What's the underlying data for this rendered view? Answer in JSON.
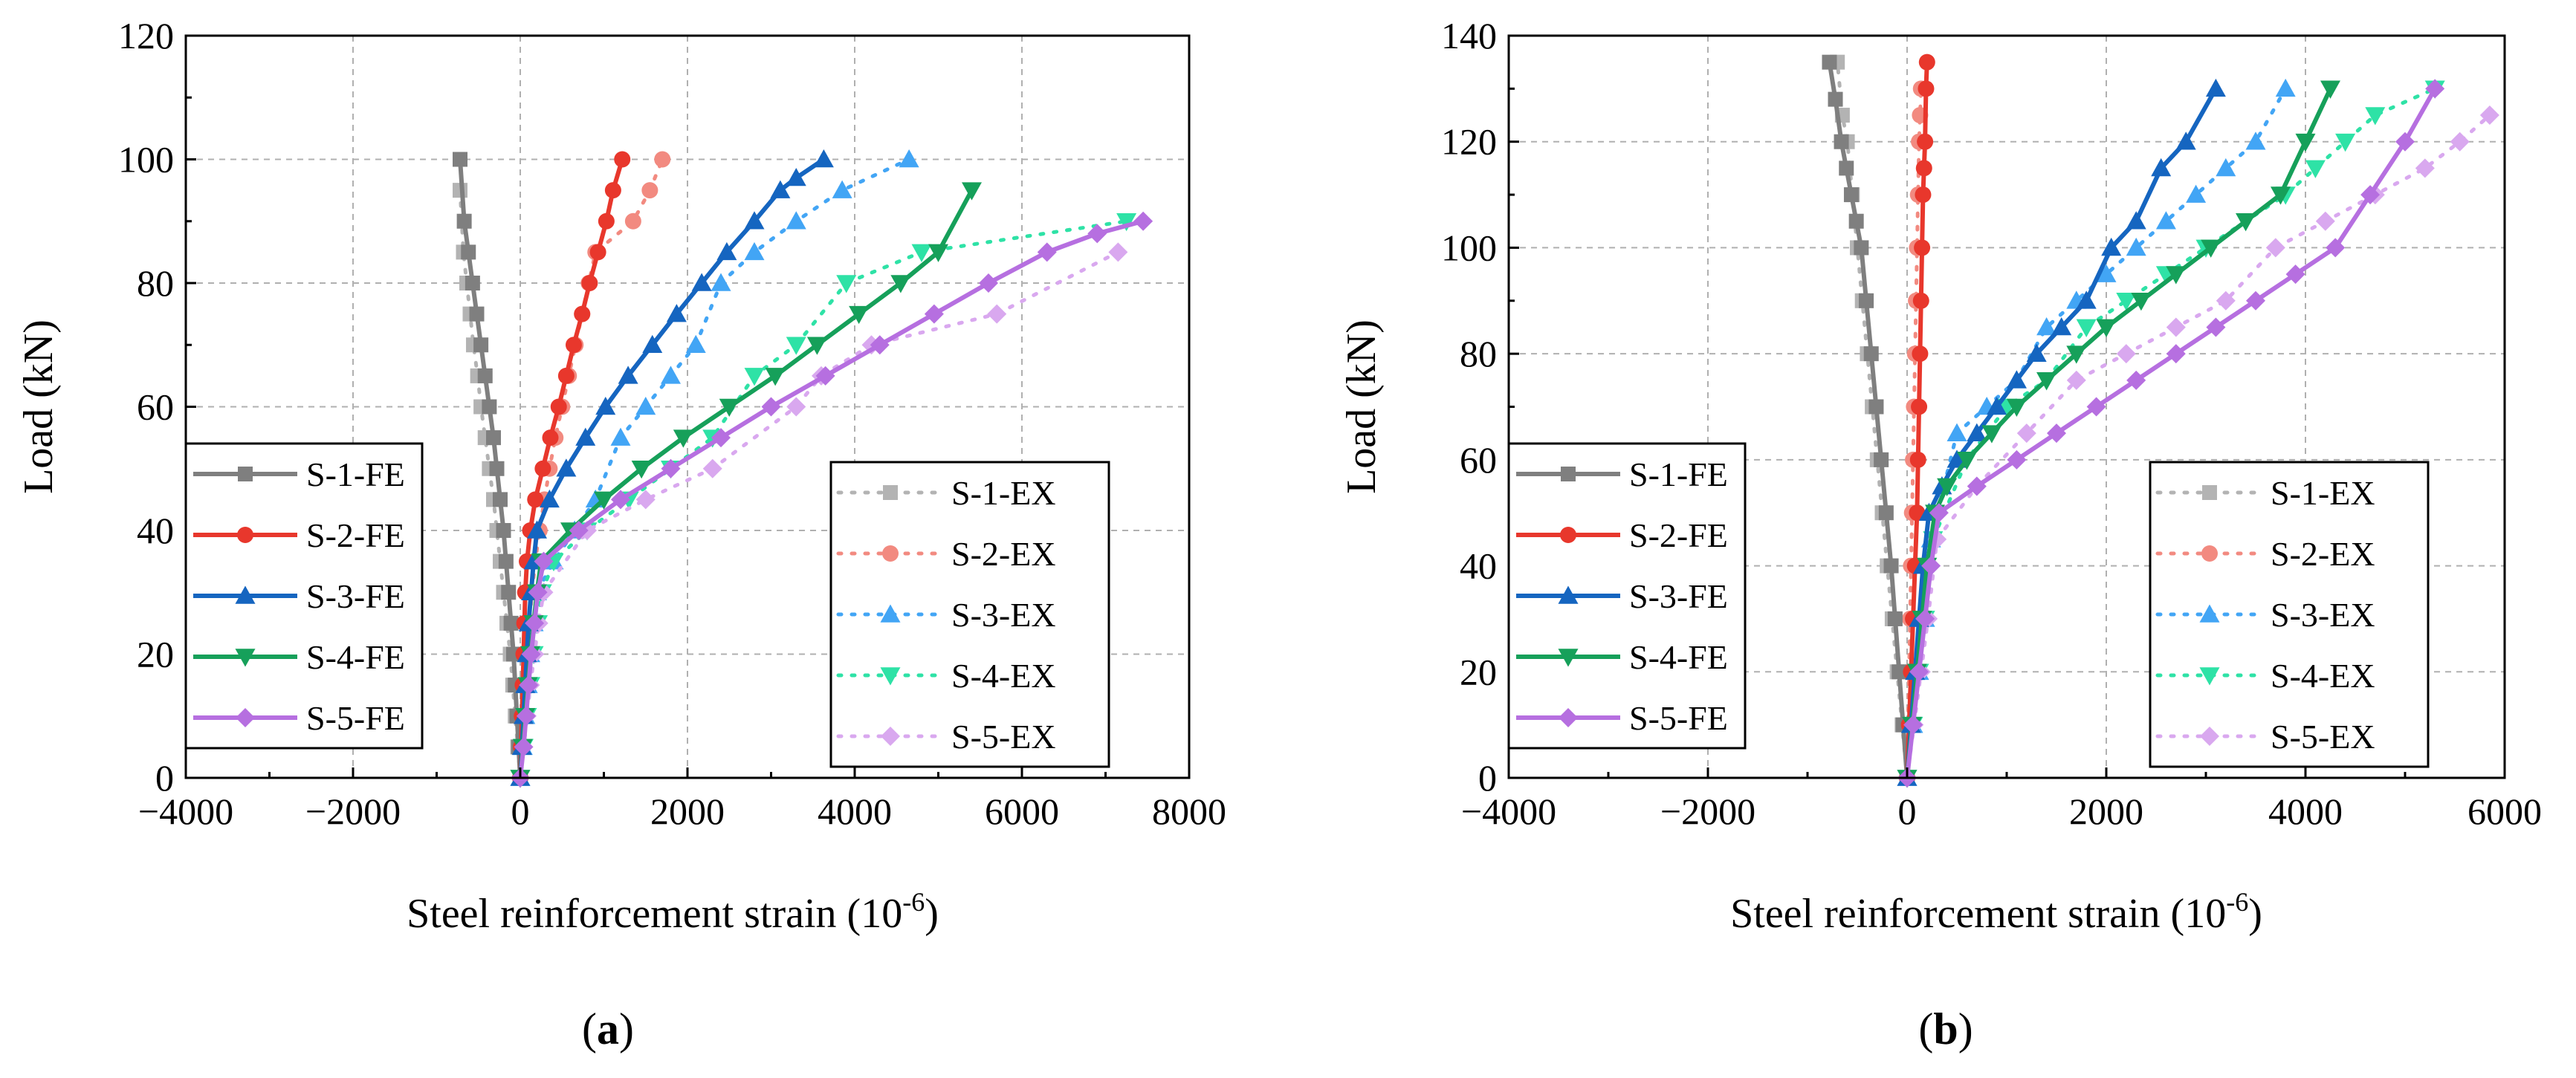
{
  "chart_data": [
    {
      "type": "line",
      "panel_label": "(a)",
      "xlabel": "Steel reinforcement strain (10",
      "xlabel_sup": "-6",
      "xlabel_suffix": ")",
      "ylabel": "Load (kN)",
      "xlim": [
        -4000,
        8000
      ],
      "ylim": [
        0,
        120
      ],
      "xticks": [
        -4000,
        -2000,
        0,
        2000,
        4000,
        6000,
        8000
      ],
      "yticks": [
        0,
        20,
        40,
        60,
        80,
        100,
        120
      ],
      "xtick_labels": [
        "−4000",
        "−2000",
        "0",
        "2000",
        "4000",
        "6000",
        "8000"
      ],
      "ytick_labels": [
        "0",
        "20",
        "40",
        "60",
        "80",
        "100",
        "120"
      ],
      "grid": true,
      "legend_fe_position": "lower-left",
      "legend_ex_position": "lower-right",
      "series": [
        {
          "name": "S-1-FE",
          "group": "FE",
          "color": "#7f7f7f",
          "marker": "square",
          "dash": false,
          "x": [
            0,
            -20,
            -40,
            -60,
            -80,
            -110,
            -140,
            -170,
            -200,
            -240,
            -280,
            -320,
            -370,
            -420,
            -470,
            -520,
            -570,
            -620,
            -670,
            -720
          ],
          "y": [
            0,
            5,
            10,
            15,
            20,
            25,
            30,
            35,
            40,
            45,
            50,
            55,
            60,
            65,
            70,
            75,
            80,
            85,
            90,
            100
          ]
        },
        {
          "name": "S-2-FE",
          "group": "FE",
          "color": "#e8372c",
          "marker": "circle",
          "dash": false,
          "x": [
            0,
            10,
            20,
            30,
            40,
            50,
            60,
            80,
            120,
            180,
            270,
            360,
            460,
            550,
            640,
            740,
            830,
            930,
            1030,
            1110,
            1220
          ],
          "y": [
            0,
            5,
            10,
            15,
            20,
            25,
            30,
            35,
            40,
            45,
            50,
            55,
            60,
            65,
            70,
            75,
            80,
            85,
            90,
            95,
            100
          ]
        },
        {
          "name": "S-3-FE",
          "group": "FE",
          "color": "#1565c0",
          "marker": "triangle-up",
          "dash": false,
          "x": [
            0,
            20,
            40,
            60,
            80,
            100,
            130,
            160,
            200,
            350,
            550,
            780,
            1020,
            1290,
            1580,
            1870,
            2170,
            2470,
            2800,
            3110,
            3300,
            3630
          ],
          "y": [
            0,
            5,
            10,
            15,
            20,
            25,
            30,
            35,
            40,
            45,
            50,
            55,
            60,
            65,
            70,
            75,
            80,
            85,
            90,
            95,
            97,
            100
          ]
        },
        {
          "name": "S-4-FE",
          "group": "FE",
          "color": "#16a05a",
          "marker": "triangle-down",
          "dash": false,
          "x": [
            0,
            30,
            60,
            90,
            120,
            160,
            200,
            250,
            600,
            1000,
            1450,
            1950,
            2500,
            3050,
            3550,
            4050,
            4550,
            5000,
            5400
          ],
          "y": [
            0,
            5,
            10,
            15,
            20,
            25,
            30,
            35,
            40,
            45,
            50,
            55,
            60,
            65,
            70,
            75,
            80,
            85,
            95
          ]
        },
        {
          "name": "S-5-FE",
          "group": "FE",
          "color": "#b66fe0",
          "marker": "diamond",
          "dash": false,
          "x": [
            0,
            40,
            70,
            100,
            130,
            170,
            210,
            280,
            700,
            1200,
            1800,
            2400,
            3000,
            3650,
            4300,
            4950,
            5600,
            6300,
            6900,
            7450
          ],
          "y": [
            0,
            5,
            10,
            15,
            20,
            25,
            30,
            35,
            40,
            45,
            50,
            55,
            60,
            65,
            70,
            75,
            80,
            85,
            88,
            90
          ]
        },
        {
          "name": "S-1-EX",
          "group": "EX",
          "color": "#b3b3b3",
          "marker": "square",
          "dash": true,
          "x": [
            0,
            -30,
            -60,
            -90,
            -120,
            -160,
            -200,
            -240,
            -280,
            -320,
            -370,
            -420,
            -470,
            -510,
            -560,
            -600,
            -640,
            -680,
            -720
          ],
          "y": [
            0,
            5,
            10,
            15,
            20,
            25,
            30,
            35,
            40,
            45,
            50,
            55,
            60,
            65,
            70,
            75,
            80,
            85,
            95
          ]
        },
        {
          "name": "S-2-EX",
          "group": "EX",
          "color": "#f28a80",
          "marker": "circle",
          "dash": true,
          "x": [
            0,
            20,
            40,
            60,
            80,
            110,
            140,
            180,
            230,
            290,
            350,
            420,
            500,
            580,
            660,
            740,
            820,
            900,
            1350,
            1550,
            1700
          ],
          "y": [
            0,
            5,
            10,
            15,
            20,
            25,
            30,
            35,
            40,
            45,
            50,
            55,
            60,
            65,
            70,
            75,
            80,
            85,
            90,
            95,
            100
          ]
        },
        {
          "name": "S-3-EX",
          "group": "EX",
          "color": "#42a5f5",
          "marker": "triangle-up",
          "dash": true,
          "x": [
            0,
            30,
            60,
            90,
            120,
            160,
            200,
            400,
            650,
            900,
            1200,
            1500,
            1800,
            2100,
            2400,
            2800,
            3300,
            3850,
            4650
          ],
          "y": [
            0,
            5,
            10,
            15,
            20,
            25,
            30,
            35,
            40,
            45,
            55,
            60,
            65,
            70,
            80,
            85,
            90,
            95,
            100
          ]
        },
        {
          "name": "S-4-EX",
          "group": "EX",
          "color": "#2ee2a6",
          "marker": "triangle-down",
          "dash": true,
          "x": [
            0,
            40,
            80,
            120,
            160,
            210,
            260,
            400,
            800,
            1300,
            1800,
            2300,
            2800,
            3300,
            3900,
            4800,
            7250
          ],
          "y": [
            0,
            5,
            10,
            15,
            20,
            25,
            30,
            35,
            40,
            45,
            50,
            55,
            65,
            70,
            80,
            85,
            90
          ]
        },
        {
          "name": "S-5-EX",
          "group": "EX",
          "color": "#d9a8ef",
          "marker": "diamond",
          "dash": true,
          "x": [
            0,
            40,
            80,
            120,
            170,
            220,
            280,
            800,
            1500,
            2300,
            3300,
            3600,
            4200,
            5700,
            7150
          ],
          "y": [
            0,
            5,
            10,
            15,
            20,
            25,
            30,
            40,
            45,
            50,
            60,
            65,
            70,
            75,
            85
          ]
        }
      ]
    },
    {
      "type": "line",
      "panel_label": "(b)",
      "xlabel": "Steel reinforcement strain (10",
      "xlabel_sup": "-6",
      "xlabel_suffix": ")",
      "ylabel": "Load (kN)",
      "xlim": [
        -4000,
        6000
      ],
      "ylim": [
        0,
        140
      ],
      "xticks": [
        -4000,
        -2000,
        0,
        2000,
        4000,
        6000
      ],
      "yticks": [
        0,
        20,
        40,
        60,
        80,
        100,
        120,
        140
      ],
      "xtick_labels": [
        "−4000",
        "−2000",
        "0",
        "2000",
        "4000",
        "6000"
      ],
      "ytick_labels": [
        "0",
        "20",
        "40",
        "60",
        "80",
        "100",
        "120",
        "140"
      ],
      "grid": true,
      "legend_fe_position": "lower-left",
      "legend_ex_position": "lower-right",
      "series": [
        {
          "name": "S-1-FE",
          "group": "FE",
          "color": "#7f7f7f",
          "marker": "square",
          "dash": false,
          "x": [
            0,
            -40,
            -80,
            -120,
            -160,
            -210,
            -260,
            -310,
            -360,
            -410,
            -460,
            -510,
            -560,
            -610,
            -660,
            -720,
            -780
          ],
          "y": [
            0,
            10,
            20,
            30,
            40,
            50,
            60,
            70,
            80,
            90,
            100,
            105,
            110,
            115,
            120,
            128,
            135
          ]
        },
        {
          "name": "S-2-FE",
          "group": "FE",
          "color": "#e8372c",
          "marker": "circle",
          "dash": false,
          "x": [
            0,
            20,
            40,
            60,
            80,
            100,
            110,
            120,
            130,
            140,
            150,
            160,
            170,
            180,
            190,
            200
          ],
          "y": [
            0,
            10,
            20,
            30,
            40,
            50,
            60,
            70,
            80,
            90,
            100,
            110,
            115,
            120,
            130,
            135
          ]
        },
        {
          "name": "S-3-FE",
          "group": "FE",
          "color": "#1565c0",
          "marker": "triangle-up",
          "dash": false,
          "x": [
            0,
            40,
            80,
            120,
            160,
            220,
            350,
            500,
            700,
            900,
            1100,
            1300,
            1550,
            1800,
            2050,
            2300,
            2550,
            2800,
            3100
          ],
          "y": [
            0,
            10,
            20,
            30,
            40,
            50,
            55,
            60,
            65,
            70,
            75,
            80,
            85,
            90,
            100,
            105,
            115,
            120,
            130
          ]
        },
        {
          "name": "S-4-FE",
          "group": "FE",
          "color": "#16a05a",
          "marker": "triangle-down",
          "dash": false,
          "x": [
            0,
            50,
            100,
            150,
            200,
            280,
            400,
            600,
            850,
            1100,
            1400,
            1700,
            2000,
            2350,
            2700,
            3050,
            3400,
            3750,
            4000,
            4250
          ],
          "y": [
            0,
            10,
            20,
            30,
            40,
            50,
            55,
            60,
            65,
            70,
            75,
            80,
            85,
            90,
            95,
            100,
            105,
            110,
            120,
            130
          ]
        },
        {
          "name": "S-5-FE",
          "group": "FE",
          "color": "#b66fe0",
          "marker": "diamond",
          "dash": false,
          "x": [
            0,
            60,
            120,
            180,
            240,
            320,
            700,
            1100,
            1500,
            1900,
            2300,
            2700,
            3100,
            3500,
            3900,
            4300,
            4650,
            5000,
            5300
          ],
          "y": [
            0,
            10,
            20,
            30,
            40,
            50,
            55,
            60,
            65,
            70,
            75,
            80,
            85,
            90,
            95,
            100,
            110,
            120,
            130
          ]
        },
        {
          "name": "S-1-EX",
          "group": "EX",
          "color": "#b3b3b3",
          "marker": "square",
          "dash": true,
          "x": [
            0,
            -50,
            -100,
            -150,
            -200,
            -250,
            -300,
            -350,
            -400,
            -450,
            -500,
            -550,
            -600,
            -650,
            -700
          ],
          "y": [
            0,
            10,
            20,
            30,
            40,
            50,
            60,
            70,
            80,
            90,
            100,
            110,
            120,
            125,
            135
          ]
        },
        {
          "name": "S-2-EX",
          "group": "EX",
          "color": "#f28a80",
          "marker": "circle",
          "dash": true,
          "x": [
            0,
            10,
            20,
            30,
            40,
            50,
            60,
            70,
            80,
            90,
            100,
            110,
            120,
            130,
            140
          ],
          "y": [
            0,
            10,
            20,
            30,
            40,
            50,
            60,
            70,
            80,
            90,
            100,
            110,
            120,
            125,
            130
          ]
        },
        {
          "name": "S-3-EX",
          "group": "EX",
          "color": "#42a5f5",
          "marker": "triangle-up",
          "dash": true,
          "x": [
            0,
            60,
            120,
            180,
            240,
            500,
            800,
            1100,
            1400,
            1700,
            2000,
            2300,
            2600,
            2900,
            3200,
            3500,
            3800
          ],
          "y": [
            0,
            10,
            20,
            30,
            45,
            65,
            70,
            75,
            85,
            90,
            95,
            100,
            105,
            110,
            115,
            120,
            130
          ]
        },
        {
          "name": "S-4-EX",
          "group": "EX",
          "color": "#2ee2a6",
          "marker": "triangle-down",
          "dash": true,
          "x": [
            0,
            60,
            120,
            180,
            260,
            600,
            1000,
            1400,
            1800,
            2200,
            2600,
            3000,
            3400,
            3800,
            4100,
            4400,
            4700,
            5300
          ],
          "y": [
            0,
            10,
            20,
            30,
            45,
            60,
            70,
            75,
            85,
            90,
            95,
            100,
            105,
            110,
            115,
            120,
            125,
            130
          ]
        },
        {
          "name": "S-5-EX",
          "group": "EX",
          "color": "#d9a8ef",
          "marker": "diamond",
          "dash": true,
          "x": [
            0,
            70,
            140,
            210,
            300,
            700,
            1200,
            1700,
            2200,
            2700,
            3200,
            3700,
            4200,
            4700,
            5200,
            5550,
            5850
          ],
          "y": [
            0,
            10,
            20,
            30,
            45,
            55,
            65,
            75,
            80,
            85,
            90,
            100,
            105,
            110,
            115,
            120,
            125
          ]
        }
      ]
    }
  ]
}
